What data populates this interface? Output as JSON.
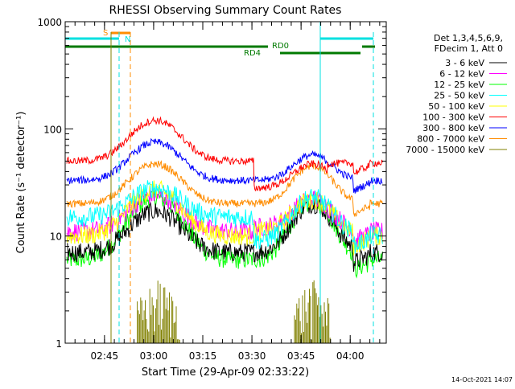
{
  "chart_data": {
    "type": "line",
    "title": "RHESSI Observing Summary Count Rates",
    "xlabel": "Start Time (29-Apr-09 02:33:22)",
    "ylabel": "Count Rate (s⁻¹ detector⁻¹)",
    "ylog": true,
    "ylim": [
      1,
      1000
    ],
    "xlim_minutes_after_0233": [
      0,
      98
    ],
    "x_ticks": [
      {
        "label": "02:45",
        "t": 12
      },
      {
        "label": "03:00",
        "t": 27
      },
      {
        "label": "03:15",
        "t": 42
      },
      {
        "label": "03:30",
        "t": 57
      },
      {
        "label": "03:45",
        "t": 72
      },
      {
        "label": "04:00",
        "t": 87
      }
    ],
    "y_ticks": [
      {
        "label": "1",
        "v": 1
      },
      {
        "label": "10",
        "v": 10
      },
      {
        "label": "100",
        "v": 100
      },
      {
        "label": "1000",
        "v": 1000
      }
    ],
    "legend_header": [
      "Det 1,3,4,5,6,9,",
      "FDecim 1, Att 0"
    ],
    "legend_position": "right",
    "series": [
      {
        "name": "3 - 6 keV",
        "color": "#000000",
        "peaks": [
          17,
          20
        ],
        "base": [
          7,
          7,
          7
        ]
      },
      {
        "name": "6 - 12 keV",
        "color": "#ff00ff",
        "peaks": [
          24,
          22
        ],
        "base": [
          11,
          12,
          11
        ]
      },
      {
        "name": "12 - 25 keV",
        "color": "#00ff00",
        "peaks": [
          23,
          21
        ],
        "base": [
          6,
          6,
          6
        ]
      },
      {
        "name": "25 - 50 keV",
        "color": "#00ffff",
        "peaks": [
          28,
          23
        ],
        "base": [
          15,
          9,
          10
        ]
      },
      {
        "name": "50 - 100 keV",
        "color": "#ffff00",
        "peaks": [
          27,
          22
        ],
        "base": [
          10,
          11,
          10
        ]
      },
      {
        "name": "100 - 300 keV",
        "color": "#ff0000",
        "peaks": [
          120,
          47
        ],
        "base": [
          50,
          28,
          48
        ]
      },
      {
        "name": "300 - 800 keV",
        "color": "#0000ff",
        "peaks": [
          75,
          57
        ],
        "base": [
          33,
          33,
          33
        ]
      },
      {
        "name": "800 - 7000 keV",
        "color": "#ff8c00",
        "peaks": [
          47,
          45
        ],
        "base": [
          20,
          20,
          20
        ]
      },
      {
        "name": "7000 - 15000 keV",
        "color": "#808000",
        "peaks": [],
        "base": []
      }
    ],
    "annotations": [
      {
        "text": "S",
        "color": "#ff8c00"
      },
      {
        "text": "N",
        "color": "#00e0e0"
      },
      {
        "text": "RD0",
        "color": "#007a00"
      },
      {
        "text": "RD4",
        "color": "#007a00"
      }
    ],
    "timestamp": "14-Oct-2021 14:07"
  }
}
